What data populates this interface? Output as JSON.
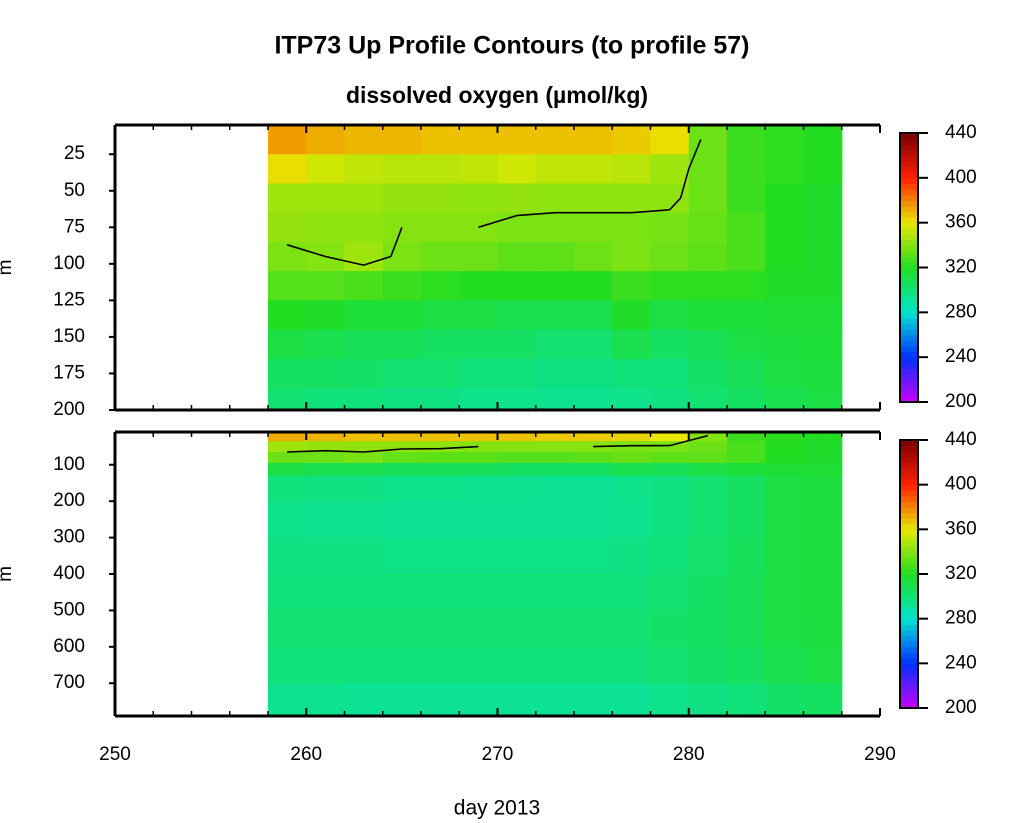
{
  "chart_data": {
    "type": "heatmap",
    "title": "ITP73 Up Profile Contours (to profile 57)",
    "subtitle": "dissolved oxygen (µmol/kg)",
    "xlabel": "day 2013",
    "xlim": [
      250,
      290
    ],
    "xticks": [
      250,
      260,
      270,
      280,
      290
    ],
    "xminor_step": 2,
    "x": [
      259,
      261,
      263,
      265,
      267,
      269,
      271,
      273,
      275,
      277,
      279,
      281,
      283,
      285,
      287
    ],
    "contour_level": 340,
    "contour_color": "#000000",
    "cticks": [
      200,
      240,
      280,
      320,
      360,
      400,
      440
    ],
    "colors": [
      "#cc00ff",
      "#0030ff",
      "#00e5d0",
      "#22dd22",
      "#e8e800",
      "#ff2000",
      "#7a0000"
    ],
    "panels": [
      {
        "ylabel": "m",
        "ylim": [
          200,
          5
        ],
        "yticks": [
          25,
          50,
          75,
          100,
          125,
          150,
          175,
          200
        ],
        "depths": [
          15,
          35,
          55,
          75,
          95,
          115,
          135,
          155,
          175,
          195
        ],
        "values": [
          [
            375,
            372,
            370,
            370,
            368,
            368,
            368,
            368,
            368,
            366,
            362,
            335,
            325,
            322,
            320
          ],
          [
            362,
            355,
            352,
            350,
            350,
            352,
            355,
            352,
            352,
            350,
            345,
            335,
            325,
            322,
            320
          ],
          [
            345,
            345,
            345,
            343,
            343,
            342,
            343,
            342,
            342,
            342,
            342,
            335,
            325,
            320,
            318
          ],
          [
            343,
            342,
            342,
            340,
            340,
            340,
            338,
            338,
            338,
            338,
            337,
            334,
            328,
            320,
            318
          ],
          [
            338,
            340,
            345,
            338,
            335,
            335,
            332,
            332,
            335,
            338,
            335,
            332,
            328,
            320,
            318
          ],
          [
            330,
            330,
            328,
            325,
            322,
            320,
            320,
            320,
            320,
            325,
            322,
            322,
            322,
            318,
            318
          ],
          [
            320,
            318,
            315,
            315,
            312,
            312,
            310,
            310,
            310,
            318,
            312,
            315,
            315,
            316,
            316
          ],
          [
            312,
            310,
            308,
            308,
            306,
            305,
            305,
            302,
            302,
            310,
            305,
            308,
            312,
            314,
            315
          ],
          [
            306,
            305,
            304,
            302,
            302,
            300,
            300,
            298,
            298,
            300,
            300,
            304,
            308,
            312,
            314
          ],
          [
            302,
            300,
            300,
            298,
            298,
            296,
            296,
            295,
            295,
            296,
            298,
            302,
            306,
            310,
            312
          ]
        ]
      },
      {
        "ylabel": "m",
        "ylim": [
          790,
          10
        ],
        "yticks": [
          100,
          200,
          300,
          400,
          500,
          600,
          700
        ],
        "depths": [
          20,
          50,
          80,
          110,
          150,
          250,
          350,
          450,
          550,
          650,
          750
        ],
        "values": [
          [
            372,
            370,
            368,
            368,
            368,
            368,
            368,
            366,
            366,
            364,
            360,
            340,
            325,
            322,
            320
          ],
          [
            345,
            343,
            342,
            342,
            342,
            340,
            340,
            340,
            340,
            338,
            338,
            335,
            328,
            320,
            318
          ],
          [
            335,
            335,
            338,
            333,
            332,
            332,
            330,
            330,
            332,
            334,
            332,
            332,
            328,
            320,
            318
          ],
          [
            312,
            310,
            310,
            308,
            308,
            308,
            306,
            306,
            306,
            310,
            308,
            312,
            315,
            316,
            316
          ],
          [
            300,
            298,
            298,
            296,
            296,
            295,
            295,
            294,
            294,
            296,
            298,
            302,
            306,
            312,
            314
          ],
          [
            296,
            295,
            295,
            294,
            294,
            294,
            294,
            294,
            294,
            295,
            298,
            302,
            306,
            312,
            314
          ],
          [
            298,
            298,
            298,
            297,
            297,
            297,
            297,
            297,
            297,
            298,
            300,
            303,
            307,
            312,
            314
          ],
          [
            300,
            300,
            300,
            300,
            300,
            300,
            300,
            300,
            300,
            300,
            302,
            305,
            308,
            312,
            314
          ],
          [
            302,
            302,
            302,
            302,
            302,
            302,
            302,
            302,
            302,
            302,
            304,
            306,
            308,
            312,
            313
          ],
          [
            300,
            300,
            300,
            300,
            300,
            300,
            300,
            300,
            300,
            300,
            302,
            304,
            306,
            310,
            312
          ],
          [
            295,
            295,
            294,
            294,
            294,
            294,
            294,
            294,
            294,
            294,
            296,
            298,
            300,
            304,
            306
          ]
        ]
      }
    ]
  }
}
